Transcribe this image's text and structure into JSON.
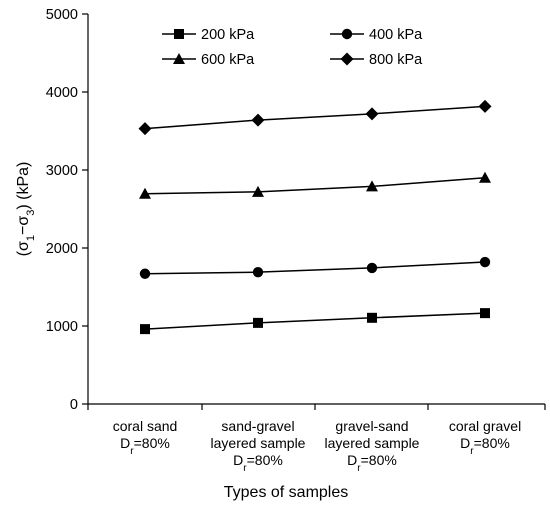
{
  "chart_data": {
    "type": "line",
    "categories": [
      {
        "lines": [
          "coral sand",
          "Dr=80%"
        ]
      },
      {
        "lines": [
          "sand-gravel",
          "layered sample",
          "Dr=80%"
        ]
      },
      {
        "lines": [
          "gravel-sand",
          "layered sample",
          "Dr=80%"
        ]
      },
      {
        "lines": [
          "coral gravel",
          "Dr=80%"
        ]
      }
    ],
    "series": [
      {
        "name": "200 kPa",
        "marker": "square",
        "values": [
          960,
          1040,
          1105,
          1165
        ]
      },
      {
        "name": "400 kPa",
        "marker": "circle",
        "values": [
          1670,
          1690,
          1745,
          1820
        ]
      },
      {
        "name": "600 kPa",
        "marker": "triangle",
        "values": [
          2695,
          2720,
          2790,
          2900
        ]
      },
      {
        "name": "800 kPa",
        "marker": "diamond",
        "values": [
          3530,
          3640,
          3720,
          3815
        ]
      }
    ],
    "xlabel": "Types of samples",
    "ylabel": "(σ1−σ3) (kPa)",
    "ylim": [
      0,
      5000
    ],
    "yticks": [
      0,
      1000,
      2000,
      3000,
      4000,
      5000
    ],
    "grid": false,
    "legend_position": "top"
  }
}
